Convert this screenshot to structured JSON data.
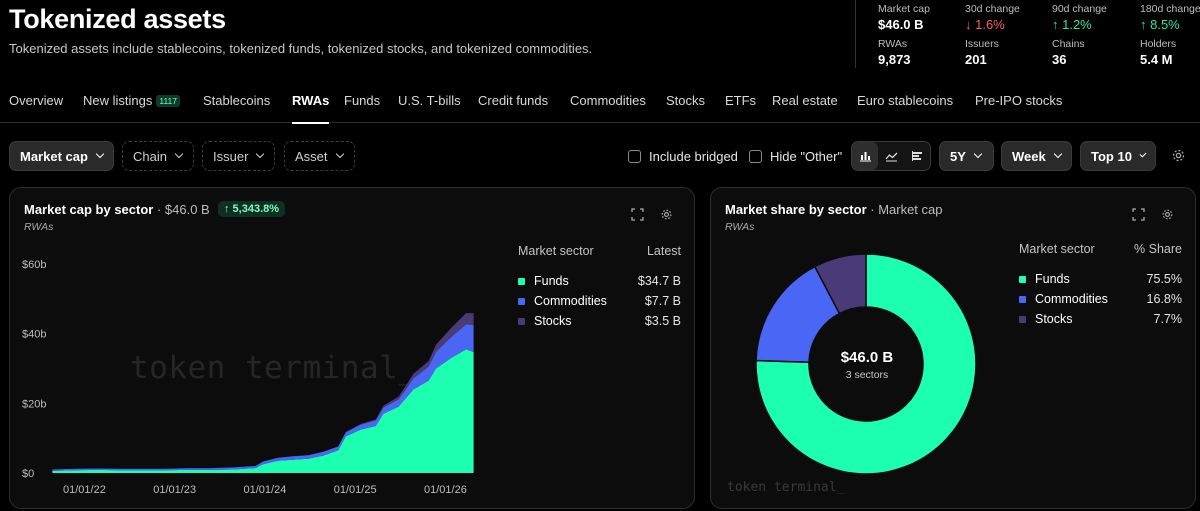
{
  "header": {
    "title": "Tokenized assets",
    "subtitle": "Tokenized assets include stablecoins, tokenized funds, tokenized stocks, and tokenized commodities."
  },
  "stats": [
    {
      "label": "Market cap",
      "value": "$46.0 B"
    },
    {
      "label": "30d change",
      "value": "↓ 1.6%",
      "trend": "down"
    },
    {
      "label": "90d change",
      "value": "↑ 1.2%",
      "trend": "up"
    },
    {
      "label": "180d change",
      "value": "↑ 8.5%",
      "trend": "up"
    },
    {
      "label": "RWAs",
      "value": "9,873"
    },
    {
      "label": "Issuers",
      "value": "201"
    },
    {
      "label": "Chains",
      "value": "36"
    },
    {
      "label": "Holders",
      "value": "5.4 M"
    }
  ],
  "tabs": [
    {
      "label": "Overview"
    },
    {
      "label": "New listings",
      "badge": "1117"
    },
    {
      "label": "Stablecoins"
    },
    {
      "label": "RWAs",
      "active": true
    },
    {
      "label": "Funds"
    },
    {
      "label": "U.S. T-bills"
    },
    {
      "label": "Credit funds"
    },
    {
      "label": "Commodities"
    },
    {
      "label": "Stocks"
    },
    {
      "label": "ETFs"
    },
    {
      "label": "Real estate"
    },
    {
      "label": "Euro stablecoins"
    },
    {
      "label": "Pre-IPO stocks"
    }
  ],
  "filters": {
    "metric": "Market cap",
    "chain": "Chain",
    "issuer": "Issuer",
    "asset": "Asset",
    "include_bridged": "Include bridged",
    "hide_other": "Hide \"Other\"",
    "range": "5Y",
    "granularity": "Week",
    "top": "Top 10"
  },
  "colors": {
    "funds": "#1dffb0",
    "commodities": "#4a66f5",
    "stocks": "#4a3a78"
  },
  "left_card": {
    "title": "Market cap by sector",
    "value": "· $46.0 B",
    "change": "↑ 5,343.8%",
    "sub": "RWAs",
    "legend_header": "Market sector",
    "legend_value_header": "Latest",
    "legend": [
      {
        "name": "Funds",
        "value": "$34.7 B"
      },
      {
        "name": "Commodities",
        "value": "$7.7 B"
      },
      {
        "name": "Stocks",
        "value": "$3.5 B"
      }
    ],
    "watermark": "token terminal_"
  },
  "right_card": {
    "title": "Market share by sector",
    "title_suffix": "· Market cap",
    "sub": "RWAs",
    "legend_header": "Market sector",
    "legend_value_header": "% Share",
    "legend": [
      {
        "name": "Funds",
        "value": "75.5%"
      },
      {
        "name": "Commodities",
        "value": "16.8%"
      },
      {
        "name": "Stocks",
        "value": "7.7%"
      }
    ],
    "center_value": "$46.0 B",
    "center_sub": "3 sectors",
    "watermark": "token terminal_"
  },
  "chart_data": [
    {
      "type": "area",
      "stacked": true,
      "x_ticks": [
        "01/01/22",
        "01/01/23",
        "01/01/24",
        "01/01/25",
        "01/01/26"
      ],
      "y_ticks": [
        "$0",
        "$20b",
        "$40b",
        "$60b"
      ],
      "ylim": [
        0,
        60
      ],
      "x": [
        "2021-10",
        "2022-01",
        "2022-04",
        "2022-07",
        "2022-10",
        "2023-01",
        "2023-04",
        "2023-07",
        "2023-10",
        "2024-01",
        "2024-02",
        "2024-04",
        "2024-06",
        "2024-08",
        "2024-10",
        "2024-12",
        "2025-01",
        "2025-03",
        "2025-05",
        "2025-06",
        "2025-08",
        "2025-09",
        "2025-10",
        "2025-12",
        "2026-01",
        "2026-03",
        "2026-05",
        "2026-06"
      ],
      "series": [
        {
          "name": "Funds",
          "values": [
            0.6,
            0.8,
            0.9,
            0.8,
            0.8,
            0.8,
            0.9,
            0.9,
            1.0,
            1.4,
            2.5,
            3.5,
            3.8,
            4.1,
            5.0,
            6.5,
            10.5,
            12.5,
            13.5,
            17.0,
            19.0,
            21.5,
            24.0,
            26.5,
            30.0,
            33.0,
            35.5,
            34.7
          ]
        },
        {
          "name": "Commodities",
          "values": [
            0.4,
            0.4,
            0.4,
            0.4,
            0.4,
            0.4,
            0.5,
            0.5,
            0.6,
            0.6,
            0.8,
            0.9,
            1.0,
            1.0,
            1.1,
            1.1,
            1.2,
            1.4,
            1.6,
            1.8,
            2.1,
            2.6,
            3.2,
            4.0,
            4.8,
            6.0,
            7.2,
            7.7
          ]
        },
        {
          "name": "Stocks",
          "values": [
            0.0,
            0.0,
            0.0,
            0.0,
            0.0,
            0.0,
            0.0,
            0.0,
            0.0,
            0.0,
            0.0,
            0.0,
            0.0,
            0.0,
            0.0,
            0.1,
            0.1,
            0.2,
            0.3,
            0.5,
            0.8,
            1.0,
            1.3,
            1.6,
            2.0,
            2.6,
            3.2,
            3.5
          ]
        }
      ]
    },
    {
      "type": "pie",
      "donut": true,
      "categories": [
        "Funds",
        "Commodities",
        "Stocks"
      ],
      "values": [
        75.5,
        16.8,
        7.7
      ]
    }
  ]
}
